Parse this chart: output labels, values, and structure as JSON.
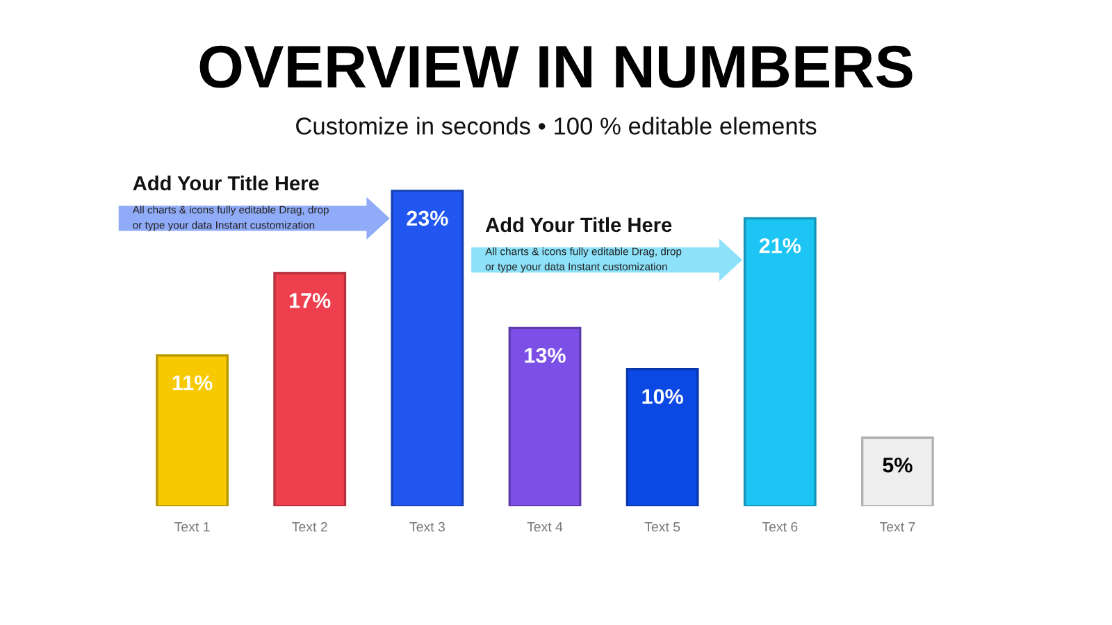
{
  "chart_data": {
    "type": "bar",
    "title": "OVERVIEW IN NUMBERS",
    "subtitle": "Customize in seconds • 100 % editable elements",
    "categories": [
      "Text 1",
      "Text 2",
      "Text 3",
      "Text 4",
      "Text 5",
      "Text 6",
      "Text 7"
    ],
    "values": [
      11,
      17,
      23,
      13,
      10,
      21,
      5
    ],
    "colors": [
      "#f6c900",
      "#ee3f4e",
      "#2157f0",
      "#7c4fe6",
      "#0c48e4",
      "#1cc5f4",
      "#eeeeee"
    ],
    "value_labels": [
      "11%",
      "17%",
      "23%",
      "13%",
      "10%",
      "21%",
      "5%"
    ],
    "tick_labels": "x",
    "annotations": [
      "Add Your Title Here",
      "All charts & icons fully editable Drag, drop\nor type your data Instant customization",
      "Add Your Title Here",
      "All charts & icons fully editable Drag, drop\nor type your data Instant customization"
    ]
  }
}
